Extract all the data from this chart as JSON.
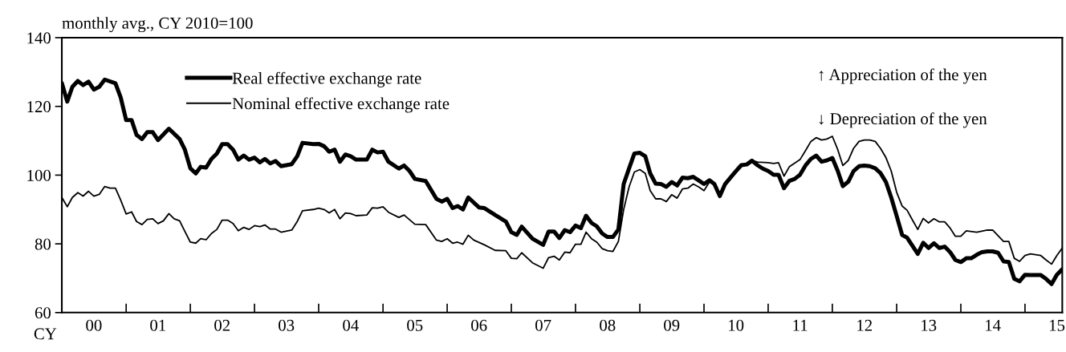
{
  "chart_data": {
    "type": "line",
    "xlim": [
      "2000-01",
      "2015-08"
    ],
    "ylim": [
      60,
      140
    ],
    "yticks": [
      60,
      80,
      100,
      120,
      140
    ],
    "xticks": [
      {
        "value": "2000-07",
        "label": "00"
      },
      {
        "value": "2001-01",
        "label": null
      },
      {
        "value": "2001-07",
        "label": "01"
      },
      {
        "value": "2002-01",
        "label": null
      },
      {
        "value": "2002-07",
        "label": "02"
      },
      {
        "value": "2003-01",
        "label": null
      },
      {
        "value": "2003-07",
        "label": "03"
      },
      {
        "value": "2004-01",
        "label": null
      },
      {
        "value": "2004-07",
        "label": "04"
      },
      {
        "value": "2005-01",
        "label": null
      },
      {
        "value": "2005-07",
        "label": "05"
      },
      {
        "value": "2006-01",
        "label": null
      },
      {
        "value": "2006-07",
        "label": "06"
      },
      {
        "value": "2007-01",
        "label": null
      },
      {
        "value": "2007-07",
        "label": "07"
      },
      {
        "value": "2008-01",
        "label": null
      },
      {
        "value": "2008-07",
        "label": "08"
      },
      {
        "value": "2009-01",
        "label": null
      },
      {
        "value": "2009-07",
        "label": "09"
      },
      {
        "value": "2010-01",
        "label": null
      },
      {
        "value": "2010-07",
        "label": "10"
      },
      {
        "value": "2011-01",
        "label": null
      },
      {
        "value": "2011-07",
        "label": "11"
      },
      {
        "value": "2012-01",
        "label": null
      },
      {
        "value": "2012-07",
        "label": "12"
      },
      {
        "value": "2013-01",
        "label": null
      },
      {
        "value": "2013-07",
        "label": "13"
      },
      {
        "value": "2014-01",
        "label": null
      },
      {
        "value": "2014-07",
        "label": "14"
      },
      {
        "value": "2015-01",
        "label": null
      },
      {
        "value": "2015-07",
        "label": "15"
      }
    ],
    "grid": false,
    "legend": "top left",
    "marker": "none",
    "line_style": "solid",
    "annotations": [
      "monthly avg., CY 2010=100",
      "CY",
      "↑ Appreciation of the yen",
      "↓ Depreciation of the yen"
    ],
    "series": [
      {
        "name": "Real effective exchange rate",
        "color": "#000000",
        "x": [
          "2000-01",
          "2000-02",
          "2000-03",
          "2000-04",
          "2000-05",
          "2000-06",
          "2000-07",
          "2000-08",
          "2000-09",
          "2000-11",
          "2000-12",
          "2001-01",
          "2001-02",
          "2001-03",
          "2001-04",
          "2001-05",
          "2001-06",
          "2001-07",
          "2001-09",
          "2001-11",
          "2001-12",
          "2002-01",
          "2002-02",
          "2002-03",
          "2002-04",
          "2002-05",
          "2002-06",
          "2002-07",
          "2002-08",
          "2002-09",
          "2002-10",
          "2002-11",
          "2002-12",
          "2003-01",
          "2003-02",
          "2003-03",
          "2003-04",
          "2003-05",
          "2003-06",
          "2003-08",
          "2003-09",
          "2003-10",
          "2003-12",
          "2004-01",
          "2004-02",
          "2004-03",
          "2004-04",
          "2004-05",
          "2004-06",
          "2004-07",
          "2004-08",
          "2004-10",
          "2004-11",
          "2004-12",
          "2005-01",
          "2005-02",
          "2005-04",
          "2005-05",
          "2005-06",
          "2005-07",
          "2005-09",
          "2005-11",
          "2005-12",
          "2006-01",
          "2006-02",
          "2006-03",
          "2006-04",
          "2006-05",
          "2006-07",
          "2006-08",
          "2006-10",
          "2006-12",
          "2007-01",
          "2007-02",
          "2007-03",
          "2007-05",
          "2007-07",
          "2007-08",
          "2007-09",
          "2007-10",
          "2007-11",
          "2007-12",
          "2008-01",
          "2008-02",
          "2008-03",
          "2008-04",
          "2008-05",
          "2008-06",
          "2008-07",
          "2008-08",
          "2008-09",
          "2008-10",
          "2008-11",
          "2008-12",
          "2009-01",
          "2009-02",
          "2009-03",
          "2009-04",
          "2009-05",
          "2009-06",
          "2009-07",
          "2009-08",
          "2009-09",
          "2009-10",
          "2009-11",
          "2009-12",
          "2010-01",
          "2010-02",
          "2010-03",
          "2010-04",
          "2010-05",
          "2010-06",
          "2010-07",
          "2010-08",
          "2010-09",
          "2010-10",
          "2010-11",
          "2010-12",
          "2011-01",
          "2011-02",
          "2011-03",
          "2011-04",
          "2011-05",
          "2011-06",
          "2011-07",
          "2011-08",
          "2011-09",
          "2011-10",
          "2011-11",
          "2011-12",
          "2012-01",
          "2012-02",
          "2012-03",
          "2012-04",
          "2012-05",
          "2012-06",
          "2012-07",
          "2012-08",
          "2012-09",
          "2012-10",
          "2012-11",
          "2012-12",
          "2013-01",
          "2013-02",
          "2013-03",
          "2013-04",
          "2013-05",
          "2013-06",
          "2013-07",
          "2013-08",
          "2013-09",
          "2013-10",
          "2013-11",
          "2013-12",
          "2014-01",
          "2014-02",
          "2014-03",
          "2014-04",
          "2014-05",
          "2014-06",
          "2014-07",
          "2014-08",
          "2014-09",
          "2014-10",
          "2014-11",
          "2014-12",
          "2015-01",
          "2015-02",
          "2015-04",
          "2015-05",
          "2015-06",
          "2015-07",
          "2015-08"
        ],
        "values": [
          126.8,
          121.4,
          125.7,
          127.4,
          126.2,
          127.2,
          124.9,
          125.7,
          127.8,
          126.7,
          122.6,
          116.0,
          116.0,
          111.7,
          110.5,
          112.5,
          112.5,
          110.2,
          113.5,
          110.5,
          107.4,
          102.0,
          100.5,
          102.4,
          102.2,
          104.7,
          106.3,
          109.0,
          109.0,
          107.4,
          104.5,
          105.7,
          104.5,
          105.1,
          103.7,
          104.7,
          103.4,
          104.1,
          102.6,
          103.2,
          105.5,
          109.4,
          109.0,
          109.1,
          108.4,
          106.8,
          107.4,
          103.9,
          106.0,
          105.5,
          104.5,
          104.5,
          107.4,
          106.6,
          106.8,
          103.9,
          101.9,
          102.8,
          101.2,
          98.9,
          98.3,
          93.1,
          92.3,
          93.1,
          90.4,
          91.0,
          90.0,
          93.5,
          90.6,
          90.4,
          88.4,
          86.5,
          83.4,
          82.6,
          85.0,
          81.5,
          79.7,
          83.6,
          83.6,
          81.7,
          84.0,
          83.4,
          85.3,
          84.6,
          88.2,
          86.1,
          85.1,
          83.0,
          82.0,
          82.0,
          84.2,
          97.4,
          102.0,
          106.3,
          106.5,
          105.5,
          100.5,
          97.5,
          97.4,
          96.6,
          98.0,
          97.0,
          99.3,
          99.1,
          99.5,
          98.5,
          97.4,
          98.5,
          97.4,
          93.9,
          97.4,
          99.3,
          101.1,
          102.9,
          103.1,
          104.2,
          102.9,
          101.9,
          101.2,
          100.1,
          100.1,
          96.2,
          98.3,
          98.9,
          100.1,
          102.8,
          104.7,
          105.7,
          103.9,
          104.3,
          105.0,
          101.2,
          96.8,
          98.1,
          101.2,
          102.6,
          102.8,
          102.6,
          102.0,
          100.6,
          98.0,
          93.5,
          88.1,
          82.6,
          81.8,
          79.4,
          77.1,
          80.3,
          78.8,
          80.2,
          78.8,
          79.2,
          77.6,
          75.3,
          74.7,
          75.8,
          75.8,
          76.8,
          77.6,
          77.8,
          77.8,
          77.4,
          74.9,
          74.7,
          69.8,
          69.1,
          71.0,
          70.9,
          70.9,
          69.8,
          68.3,
          71.0,
          72.6
        ]
      },
      {
        "name": "Nominal effective exchange rate",
        "color": "#000000",
        "x": [
          "2000-01",
          "2000-02",
          "2000-03",
          "2000-04",
          "2000-05",
          "2000-06",
          "2000-07",
          "2000-08",
          "2000-09",
          "2000-10",
          "2000-11",
          "2000-12",
          "2001-01",
          "2001-02",
          "2001-03",
          "2001-04",
          "2001-05",
          "2001-06",
          "2001-07",
          "2001-08",
          "2001-09",
          "2001-10",
          "2001-11",
          "2001-12",
          "2002-01",
          "2002-02",
          "2002-03",
          "2002-04",
          "2002-05",
          "2002-06",
          "2002-07",
          "2002-08",
          "2002-09",
          "2002-10",
          "2002-11",
          "2002-12",
          "2003-01",
          "2003-02",
          "2003-03",
          "2003-04",
          "2003-05",
          "2003-06",
          "2003-08",
          "2003-09",
          "2003-10",
          "2003-12",
          "2004-01",
          "2004-02",
          "2004-03",
          "2004-04",
          "2004-05",
          "2004-06",
          "2004-07",
          "2004-08",
          "2004-10",
          "2004-11",
          "2004-12",
          "2005-01",
          "2005-02",
          "2005-04",
          "2005-05",
          "2005-07",
          "2005-09",
          "2005-11",
          "2005-12",
          "2006-01",
          "2006-02",
          "2006-03",
          "2006-04",
          "2006-05",
          "2006-06",
          "2006-08",
          "2006-10",
          "2006-12",
          "2007-01",
          "2007-02",
          "2007-03",
          "2007-05",
          "2007-07",
          "2007-08",
          "2007-09",
          "2007-10",
          "2007-11",
          "2007-12",
          "2008-01",
          "2008-02",
          "2008-03",
          "2008-04",
          "2008-05",
          "2008-06",
          "2008-07",
          "2008-08",
          "2008-09",
          "2008-10",
          "2008-11",
          "2008-12",
          "2009-01",
          "2009-02",
          "2009-03",
          "2009-04",
          "2009-05",
          "2009-06",
          "2009-07",
          "2009-08",
          "2009-09",
          "2009-10",
          "2009-11",
          "2009-12",
          "2010-01",
          "2010-02",
          "2010-03",
          "2010-04",
          "2010-05",
          "2010-06",
          "2010-07",
          "2010-08",
          "2010-09",
          "2010-10",
          "2010-11",
          "2011-01",
          "2011-02",
          "2011-03",
          "2011-04",
          "2011-05",
          "2011-07",
          "2011-08",
          "2011-09",
          "2011-10",
          "2011-11",
          "2011-12",
          "2012-01",
          "2012-02",
          "2012-03",
          "2012-04",
          "2012-05",
          "2012-06",
          "2012-07",
          "2012-08",
          "2012-09",
          "2012-10",
          "2012-11",
          "2012-12",
          "2013-01",
          "2013-02",
          "2013-03",
          "2013-04",
          "2013-05",
          "2013-06",
          "2013-07",
          "2013-08",
          "2013-09",
          "2013-10",
          "2013-11",
          "2013-12",
          "2014-01",
          "2014-02",
          "2014-04",
          "2014-06",
          "2014-07",
          "2014-09",
          "2014-10",
          "2014-11",
          "2014-12",
          "2015-01",
          "2015-02",
          "2015-04",
          "2015-05",
          "2015-06",
          "2015-07",
          "2015-08"
        ],
        "values": [
          93.5,
          90.8,
          93.5,
          94.9,
          93.9,
          95.3,
          93.9,
          94.4,
          96.7,
          96.2,
          96.2,
          92.7,
          88.7,
          89.3,
          86.5,
          85.6,
          87.1,
          87.3,
          85.9,
          86.7,
          88.8,
          87.3,
          86.7,
          83.6,
          80.5,
          80.2,
          81.5,
          81.2,
          83.0,
          84.2,
          86.9,
          86.9,
          85.9,
          83.8,
          84.8,
          84.2,
          85.3,
          85.0,
          85.5,
          84.3,
          84.3,
          83.4,
          84.0,
          86.5,
          89.6,
          90.0,
          90.4,
          90.0,
          89.0,
          90.0,
          87.3,
          89.0,
          88.8,
          88.2,
          88.4,
          90.5,
          90.4,
          90.8,
          89.2,
          87.7,
          88.4,
          85.7,
          85.6,
          81.1,
          80.7,
          81.5,
          80.2,
          80.5,
          79.9,
          82.5,
          81.1,
          79.7,
          78.1,
          78.0,
          75.8,
          75.7,
          77.4,
          74.5,
          72.9,
          76.0,
          76.4,
          75.3,
          77.6,
          77.4,
          79.9,
          79.9,
          83.4,
          81.5,
          80.5,
          78.6,
          78.0,
          77.8,
          80.7,
          90.0,
          96.6,
          100.9,
          101.6,
          100.5,
          95.5,
          93.1,
          93.1,
          92.3,
          94.3,
          93.3,
          96.0,
          96.2,
          97.4,
          96.6,
          95.5,
          98.0,
          97.4,
          94.1,
          97.4,
          99.3,
          101.1,
          103.1,
          103.4,
          104.3,
          103.8,
          103.6,
          103.4,
          103.6,
          99.7,
          102.4,
          104.5,
          107.1,
          109.8,
          110.9,
          110.2,
          110.5,
          111.3,
          107.4,
          102.8,
          104.3,
          107.8,
          109.8,
          110.2,
          110.2,
          109.8,
          107.8,
          105.1,
          101.2,
          95.0,
          91.0,
          89.8,
          86.9,
          84.2,
          87.4,
          86.1,
          87.3,
          86.4,
          86.4,
          84.6,
          82.2,
          82.2,
          83.8,
          83.4,
          84.0,
          84.0,
          80.7,
          80.7,
          75.8,
          74.9,
          76.6,
          77.1,
          76.6,
          75.3,
          74.1,
          76.6,
          78.8
        ]
      }
    ]
  }
}
